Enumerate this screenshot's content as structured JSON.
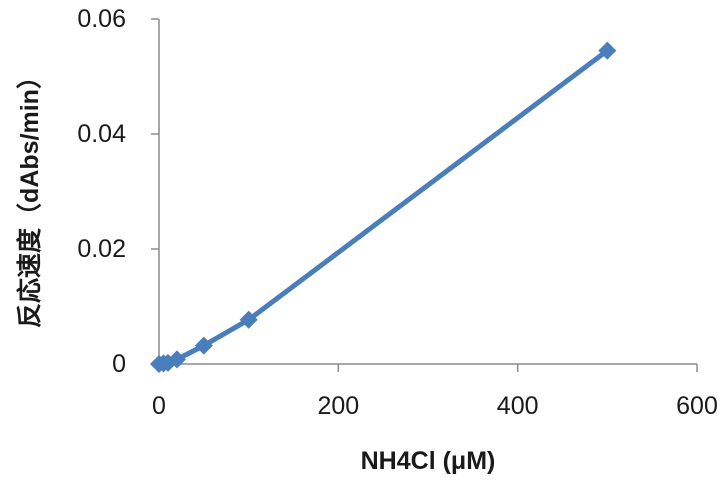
{
  "chart_data": {
    "type": "scatter",
    "xlabel": "NH4Cl (μM)",
    "ylabel": "反応速度（dAbs/min）",
    "xlim": [
      0,
      600
    ],
    "ylim": [
      0,
      0.06
    ],
    "x_ticks": [
      0,
      200,
      400,
      600
    ],
    "y_ticks": [
      0,
      0.02,
      0.04,
      0.06
    ],
    "x_tick_labels": [
      "0",
      "200",
      "400",
      "600"
    ],
    "y_tick_labels": [
      "0",
      "0.02",
      "0.04",
      "0.06"
    ],
    "grid": false,
    "legend": "none",
    "line_style": "straight lines connecting markers",
    "marker": "diamond",
    "series": [
      {
        "color": "#4a7ebb",
        "x": [
          0,
          5,
          10,
          20,
          50,
          100,
          500
        ],
        "y": [
          0,
          0.0001,
          0.0002,
          0.0008,
          0.0032,
          0.0077,
          0.0545
        ]
      }
    ]
  }
}
